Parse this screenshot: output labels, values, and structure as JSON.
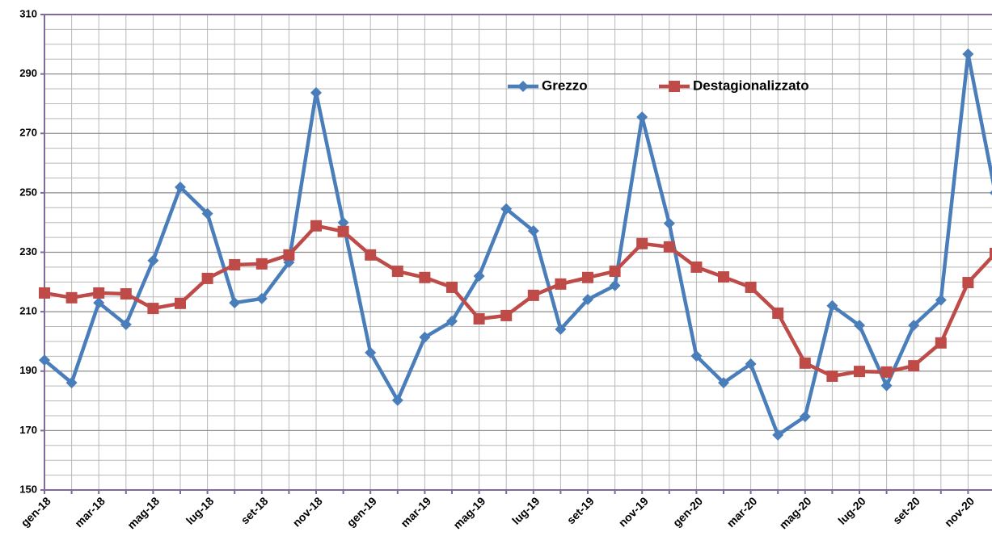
{
  "chart_data": {
    "type": "line",
    "categories": [
      "gen-18",
      null,
      "mar-18",
      null,
      "mag-18",
      null,
      "lug-18",
      null,
      "set-18",
      null,
      "nov-18",
      null,
      "gen-19",
      null,
      "mar-19",
      null,
      "mag-19",
      null,
      "lug-19",
      null,
      "set-19",
      null,
      "nov-19",
      null,
      "gen-20",
      null,
      "mar-20",
      null,
      "mag-20",
      null,
      "lug-20",
      null,
      "set-20",
      null,
      "nov-20",
      null
    ],
    "series": [
      {
        "name": "Grezzo",
        "color": "#4a7ebb",
        "marker": "diamond",
        "values": [
          193.7,
          186.1,
          213,
          205.7,
          227.2,
          251.9,
          243,
          213,
          214.4,
          226.6,
          283.7,
          240,
          196.2,
          180.2,
          201.4,
          206.8,
          222,
          244.6,
          237.2,
          204.1,
          214.1,
          218.8,
          275.5,
          239.7,
          195.1,
          186.1,
          192.4,
          168.5,
          174.7,
          212,
          205.4,
          185.1,
          205.4,
          213.9,
          296.7,
          250
        ]
      },
      {
        "name": "Destagionalizzato",
        "color": "#be4b48",
        "marker": "square",
        "values": [
          216.3,
          214.7,
          216.3,
          216,
          211.1,
          212.8,
          221.2,
          225.8,
          226.1,
          229.1,
          238.9,
          237,
          229.1,
          223.6,
          221.5,
          218.2,
          207.6,
          208.7,
          215.5,
          219.3,
          221.5,
          223.6,
          232.9,
          231.8,
          225,
          221.7,
          218.2,
          209.5,
          192.7,
          188.3,
          189.9,
          189.7,
          191.8,
          199.5,
          219.8,
          229.6
        ]
      }
    ],
    "ylim": [
      150,
      310
    ],
    "yticks": [
      150,
      170,
      190,
      210,
      230,
      250,
      270,
      290,
      310
    ],
    "yminorticks": [
      155,
      160,
      165,
      175,
      180,
      185,
      195,
      200,
      205,
      215,
      220,
      225,
      235,
      240,
      245,
      255,
      260,
      265,
      275,
      280,
      285,
      295,
      300,
      305
    ],
    "grid": true,
    "legend": "top"
  }
}
